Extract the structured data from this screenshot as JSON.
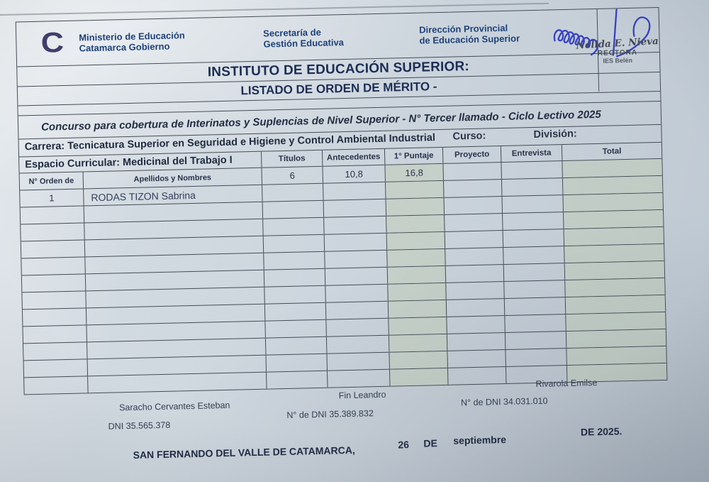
{
  "header": {
    "logo_glyph": "C",
    "ministry_line1": "Ministerio de Educación",
    "ministry_line2": "Catamarca Gobierno",
    "secretaria_line1": "Secretaría de",
    "secretaria_line2": "Gestión Educativa",
    "direccion_line1": "Dirección Provincial",
    "direccion_line2": "de Educación Superior",
    "stamp": {
      "name": "Nélida E. Nieva",
      "role": "RECTORA",
      "org": "IES Belén"
    }
  },
  "titles": {
    "main": "INSTITUTO DE EDUCACIÓN SUPERIOR:",
    "listado": "LISTADO DE ORDEN DE MÉRITO -",
    "concurso": "Concurso para cobertura de Interinatos y Suplencias de Nivel Superior - N° Tercer llamado  - Ciclo Lectivo 2025"
  },
  "info": {
    "carrera": "Carrera: Tecnicatura Superior en Seguridad e Higiene y Control Ambiental Industrial",
    "curso_label": "Curso:",
    "division_label": "División:",
    "espacio": "Espacio Curricular: Medicinal del Trabajo I"
  },
  "table": {
    "score_headers": [
      "Títulos",
      "Antecedentes",
      "1° Puntaje",
      "Proyecto",
      "Entrevista",
      "Total"
    ],
    "orden_header": "N° Orden de",
    "apellidos_header": "Apellidos y Nombres",
    "score_values": [
      "6",
      "10,8",
      "16,8",
      "",
      "",
      ""
    ],
    "data_rows": [
      {
        "orden": "1",
        "nombre": "RODAS TIZON Sabrina",
        "values": [
          "",
          "",
          "",
          "",
          "",
          ""
        ]
      }
    ],
    "empty_rows": 11
  },
  "footer": {
    "signers": [
      {
        "name": "Saracho Cervantes Esteban",
        "dni": "DNI  35.565.378"
      },
      {
        "name": "Fin Leandro",
        "dni": "N° de DNI  35.389.832"
      },
      {
        "name": "Rivarola Emilse",
        "dni": "N° de DNI 34.031.010"
      }
    ],
    "place_date": {
      "place": "SAN FERNANDO DEL VALLE DE CATAMARCA,",
      "day": "26",
      "de": "DE",
      "month": "septiembre",
      "year": "DE 2025."
    }
  },
  "colors": {
    "paper": "#cbd4dc",
    "grid_line": "#454d57",
    "title_navy": "#1c2e55",
    "brand_blue": "#1e4178",
    "signature_ink": "#2c36c2",
    "tinted_column_green": "#c4cdb3"
  }
}
